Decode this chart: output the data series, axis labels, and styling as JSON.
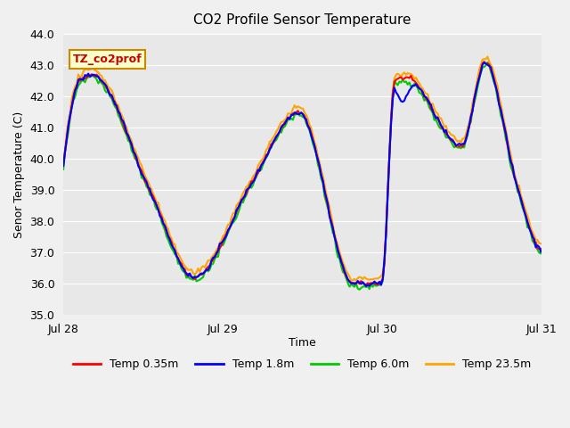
{
  "title": "CO2 Profile Sensor Temperature",
  "xlabel": "Time",
  "ylabel": "Senor Temperature (C)",
  "ylim": [
    35.0,
    44.0
  ],
  "yticks": [
    35.0,
    36.0,
    37.0,
    38.0,
    39.0,
    40.0,
    41.0,
    42.0,
    43.0,
    44.0
  ],
  "background_color": "#e8e8e8",
  "plot_bg_color": "#e8e8e8",
  "legend_label": "TZ_co2prof",
  "series_labels": [
    "Temp 0.35m",
    "Temp 1.8m",
    "Temp 6.0m",
    "Temp 23.5m"
  ],
  "series_colors": [
    "#ff0000",
    "#0000ff",
    "#00cc00",
    "#ffa500"
  ],
  "line_width": 1.5,
  "x_tick_labels": [
    "Jul 28",
    "Jul 29",
    "Jul 30",
    "Jul 31"
  ],
  "x_tick_positions": [
    0,
    96,
    192,
    288
  ],
  "total_points": 384
}
